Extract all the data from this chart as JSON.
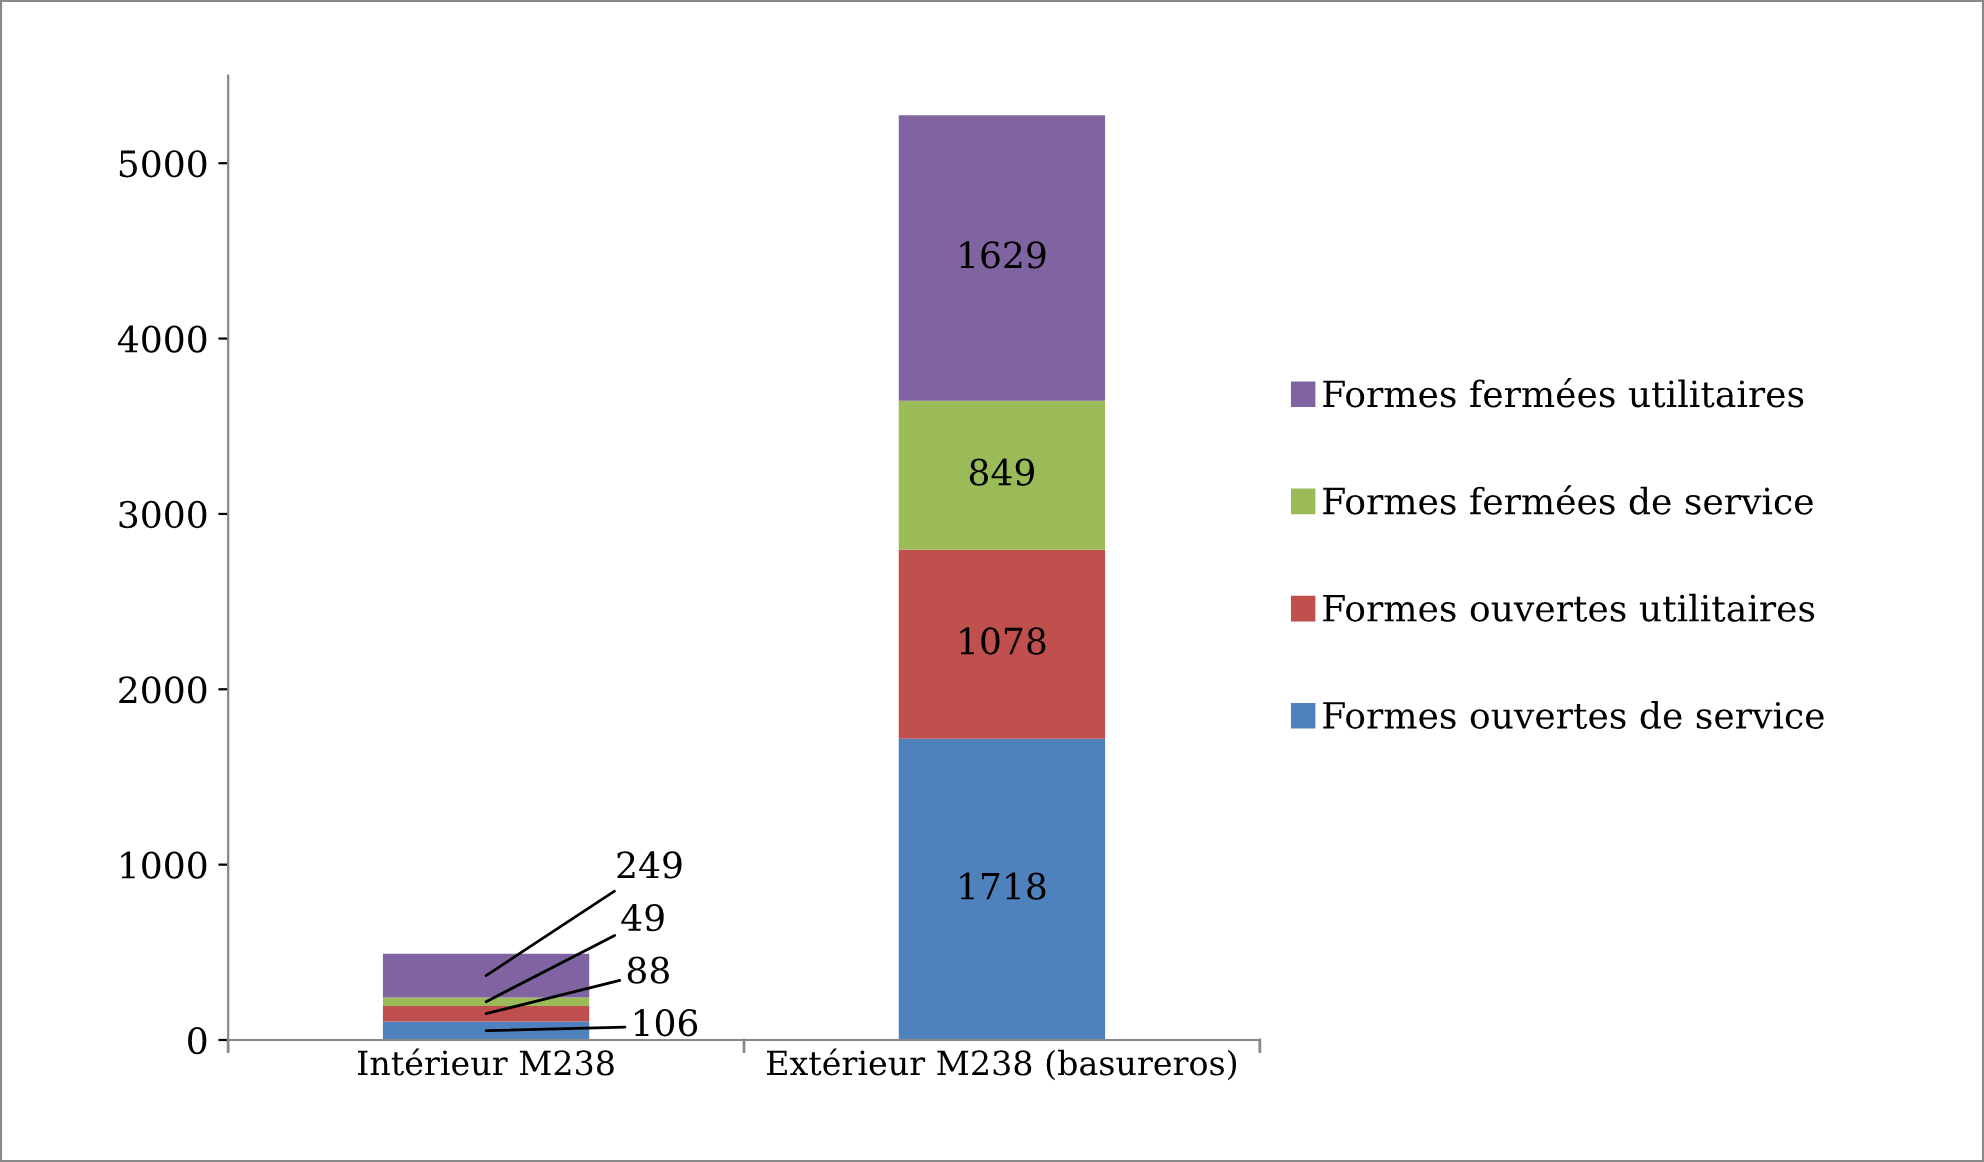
{
  "chart_data": {
    "type": "bar",
    "stacked": true,
    "categories": [
      "Intérieur M238",
      "Extérieur M238 (basureros)"
    ],
    "series": [
      {
        "name": "Formes ouvertes de service",
        "color": "#4f81bd",
        "values": [
          106,
          1718
        ]
      },
      {
        "name": "Formes ouvertes utilitaires",
        "color": "#c0504d",
        "values": [
          88,
          1078
        ]
      },
      {
        "name": "Formes fermées de service",
        "color": "#9bbb59",
        "values": [
          49,
          849
        ]
      },
      {
        "name": "Formes fermées utilitaires",
        "color": "#8064a2",
        "values": [
          249,
          1629
        ]
      }
    ],
    "ylim": [
      0,
      5500
    ],
    "yticks": [
      0,
      1000,
      2000,
      3000,
      4000,
      5000
    ],
    "data_labels": true,
    "legend": "right",
    "grid": false
  }
}
